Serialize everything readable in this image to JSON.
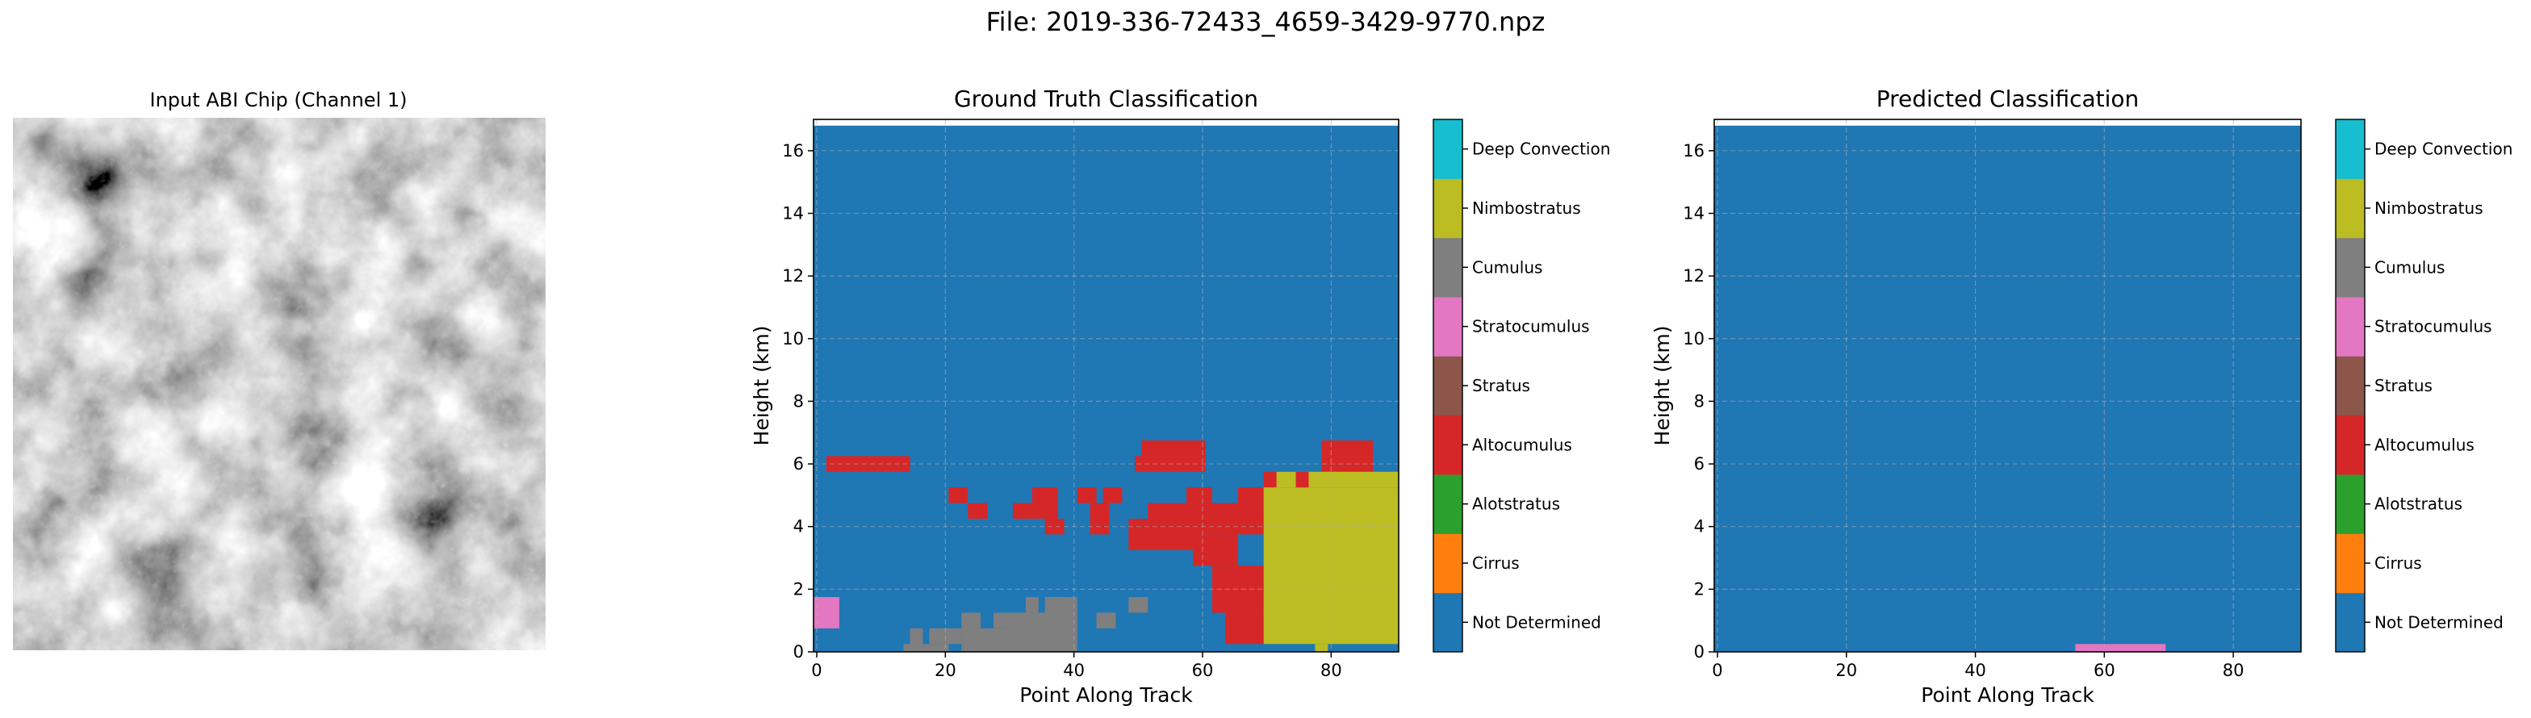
{
  "suptitle": "File: 2019-336-72433_4659-3429-9770.npz",
  "colors": {
    "Not Determined": "#1f77b4",
    "Cirrus": "#ff7f0e",
    "Alotstratus": "#2ca02c",
    "Altocumulus": "#d62728",
    "Stratus": "#8c564b",
    "Stratocumulus": "#e377c2",
    "Cumulus": "#7f7f7f",
    "Nimbostratus": "#bcbd22",
    "Deep Convection": "#17becf",
    "Altocumulus_colorbar": "#d62728",
    "Stratus_colorbar": "#8c564b"
  },
  "input_image": {
    "title": "Input ABI Chip (Channel 1)",
    "description_type": "grayscale satellite image"
  },
  "chart_data": [
    {
      "type": "heatmap",
      "title": "Ground Truth Classification",
      "xlabel": "Point Along Track",
      "ylabel": "Height (km)",
      "xlim": [
        -0.5,
        90.5
      ],
      "ylim": [
        0,
        17
      ],
      "x_ticks": [
        "0",
        "20",
        "40",
        "60",
        "80"
      ],
      "y_ticks": [
        "0",
        "2",
        "4",
        "6",
        "8",
        "10",
        "12",
        "14",
        "16"
      ],
      "grid": true,
      "background_class": "Not Determined",
      "data_top_km": 16.8,
      "regions": [
        {
          "class": "Stratocumulus",
          "x": [
            0,
            4
          ],
          "y": [
            0.75,
            1.75
          ]
        },
        {
          "class": "Altocumulus",
          "x": [
            2,
            15
          ],
          "y": [
            5.75,
            6.25
          ]
        },
        {
          "class": "Altocumulus",
          "x": [
            21,
            24
          ],
          "y": [
            4.75,
            5.25
          ]
        },
        {
          "class": "Altocumulus",
          "x": [
            24,
            27
          ],
          "y": [
            4.25,
            4.75
          ]
        },
        {
          "class": "Altocumulus",
          "x": [
            31,
            34
          ],
          "y": [
            4.25,
            4.75
          ]
        },
        {
          "class": "Altocumulus",
          "x": [
            34,
            38
          ],
          "y": [
            4.25,
            5.25
          ]
        },
        {
          "class": "Altocumulus",
          "x": [
            36,
            39
          ],
          "y": [
            3.75,
            4.25
          ]
        },
        {
          "class": "Altocumulus",
          "x": [
            41,
            44
          ],
          "y": [
            4.75,
            5.25
          ]
        },
        {
          "class": "Altocumulus",
          "x": [
            43,
            46
          ],
          "y": [
            3.75,
            4.75
          ]
        },
        {
          "class": "Altocumulus",
          "x": [
            45,
            48
          ],
          "y": [
            4.75,
            5.25
          ]
        },
        {
          "class": "Altocumulus",
          "x": [
            50,
            52
          ],
          "y": [
            5.75,
            6.25
          ]
        },
        {
          "class": "Altocumulus",
          "x": [
            51,
            61
          ],
          "y": [
            5.75,
            6.75
          ]
        },
        {
          "class": "Altocumulus",
          "x": [
            49,
            59
          ],
          "y": [
            3.25,
            4.25
          ]
        },
        {
          "class": "Altocumulus",
          "x": [
            52,
            60
          ],
          "y": [
            4.25,
            4.75
          ]
        },
        {
          "class": "Altocumulus",
          "x": [
            58,
            62
          ],
          "y": [
            4.75,
            5.25
          ]
        },
        {
          "class": "Altocumulus",
          "x": [
            59,
            70
          ],
          "y": [
            3.75,
            4.75
          ]
        },
        {
          "class": "Altocumulus",
          "x": [
            59,
            66
          ],
          "y": [
            2.75,
            3.75
          ]
        },
        {
          "class": "Altocumulus",
          "x": [
            62,
            70
          ],
          "y": [
            1.25,
            2.75
          ]
        },
        {
          "class": "Altocumulus",
          "x": [
            64,
            70
          ],
          "y": [
            0.25,
            1.25
          ]
        },
        {
          "class": "Altocumulus",
          "x": [
            66,
            70
          ],
          "y": [
            4.75,
            5.25
          ]
        },
        {
          "class": "Altocumulus",
          "x": [
            70,
            74
          ],
          "y": [
            5.25,
            5.75
          ]
        },
        {
          "class": "Altocumulus",
          "x": [
            79,
            87
          ],
          "y": [
            5.75,
            6.75
          ]
        },
        {
          "class": "Nimbostratus",
          "x": [
            70,
            91
          ],
          "y": [
            0.25,
            5.25
          ]
        },
        {
          "class": "Nimbostratus",
          "x": [
            72,
            91
          ],
          "y": [
            5.25,
            5.75
          ]
        },
        {
          "class": "Nimbostratus",
          "x": [
            78,
            80
          ],
          "y": [
            0,
            0.25
          ]
        },
        {
          "class": "Altocumulus",
          "x": [
            75,
            77
          ],
          "y": [
            5.25,
            5.75
          ]
        },
        {
          "class": "Cumulus",
          "x": [
            14,
            15
          ],
          "y": [
            0,
            0.25
          ]
        },
        {
          "class": "Cumulus",
          "x": [
            15,
            17
          ],
          "y": [
            0,
            0.75
          ]
        },
        {
          "class": "Cumulus",
          "x": [
            17,
            21
          ],
          "y": [
            0,
            0.25
          ]
        },
        {
          "class": "Cumulus",
          "x": [
            18,
            23
          ],
          "y": [
            0.25,
            0.75
          ]
        },
        {
          "class": "Cumulus",
          "x": [
            23,
            26
          ],
          "y": [
            0,
            1.25
          ]
        },
        {
          "class": "Cumulus",
          "x": [
            26,
            31
          ],
          "y": [
            0,
            0.75
          ]
        },
        {
          "class": "Cumulus",
          "x": [
            28,
            31
          ],
          "y": [
            0.75,
            1.25
          ]
        },
        {
          "class": "Cumulus",
          "x": [
            31,
            41
          ],
          "y": [
            0,
            1.25
          ]
        },
        {
          "class": "Cumulus",
          "x": [
            33,
            35
          ],
          "y": [
            1.25,
            1.75
          ]
        },
        {
          "class": "Cumulus",
          "x": [
            36,
            38
          ],
          "y": [
            1.25,
            1.75
          ]
        },
        {
          "class": "Cumulus",
          "x": [
            37,
            41
          ],
          "y": [
            1.25,
            1.75
          ]
        },
        {
          "class": "Cumulus",
          "x": [
            44,
            47
          ],
          "y": [
            0.75,
            1.25
          ]
        },
        {
          "class": "Cumulus",
          "x": [
            49,
            52
          ],
          "y": [
            1.25,
            1.75
          ]
        }
      ]
    },
    {
      "type": "heatmap",
      "title": "Predicted Classification",
      "xlabel": "Point Along Track",
      "ylabel": "Height (km)",
      "xlim": [
        -0.5,
        90.5
      ],
      "ylim": [
        0,
        17
      ],
      "x_ticks": [
        "0",
        "20",
        "40",
        "60",
        "80"
      ],
      "y_ticks": [
        "0",
        "2",
        "4",
        "6",
        "8",
        "10",
        "12",
        "14",
        "16"
      ],
      "grid": true,
      "background_class": "Not Determined",
      "data_top_km": 16.8,
      "regions": [
        {
          "class": "Stratocumulus",
          "x": [
            56,
            70
          ],
          "y": [
            0,
            0.25
          ]
        }
      ]
    }
  ],
  "colorbar": {
    "labels": [
      "Not Determined",
      "Cirrus",
      "Alotstratus",
      "Altocumulus",
      "Stratus",
      "Stratocumulus",
      "Cumulus",
      "Nimbostratus",
      "Deep Convection"
    ],
    "colors": [
      "#1f77b4",
      "#ff7f0e",
      "#2ca02c",
      "#d62728",
      "#8c564b",
      "#e377c2",
      "#7f7f7f",
      "#bcbd22",
      "#17becf"
    ]
  }
}
